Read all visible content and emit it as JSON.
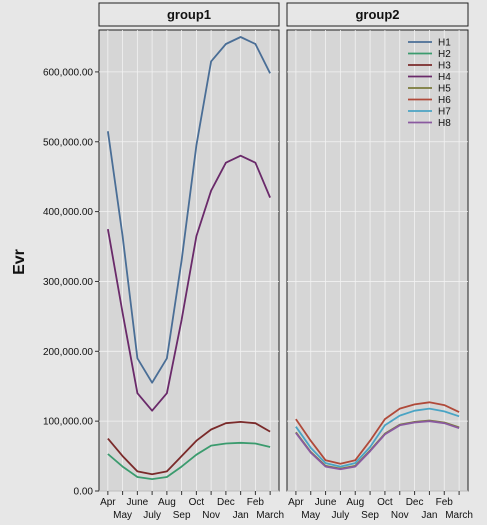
{
  "chart_data": {
    "type": "line",
    "ylabel": "Evr",
    "ylim": [
      0,
      660000
    ],
    "yticks": [
      0,
      100000,
      200000,
      300000,
      400000,
      500000,
      600000
    ],
    "ytick_labels": [
      "0.00",
      "100,000.00",
      "200,000.00",
      "300,000.00",
      "400,000.00",
      "500,000.00",
      "600,000.00"
    ],
    "categories": [
      "Apr",
      "May",
      "June",
      "July",
      "Aug",
      "Sep",
      "Oct",
      "Nov",
      "Dec",
      "Jan",
      "Feb",
      "March"
    ],
    "x_labels_top": [
      "Apr",
      "June",
      "Aug",
      "Oct",
      "Dec",
      "Feb"
    ],
    "x_labels_bottom": [
      "May",
      "July",
      "Sep",
      "Nov",
      "Jan",
      "March"
    ],
    "grid": true,
    "legend": {
      "position": "top-right",
      "entries": [
        {
          "name": "H1",
          "color": "#4a6e96"
        },
        {
          "name": "H2",
          "color": "#3b9b6e"
        },
        {
          "name": "H3",
          "color": "#7a2a2a"
        },
        {
          "name": "H4",
          "color": "#6a2a6a"
        },
        {
          "name": "H5",
          "color": "#7a7a3a"
        },
        {
          "name": "H6",
          "color": "#b04a3a"
        },
        {
          "name": "H7",
          "color": "#4aa4c4"
        },
        {
          "name": "H8",
          "color": "#8a5aa0"
        }
      ]
    },
    "panels": [
      {
        "title": "group1",
        "series": [
          {
            "name": "H1",
            "color": "#4a6e96",
            "values": [
              515000,
              365000,
              190000,
              155000,
              190000,
              330000,
              495000,
              615000,
              640000,
              650000,
              640000,
              598000
            ]
          },
          {
            "name": "H4",
            "color": "#6a2a6a",
            "values": [
              375000,
              255000,
              140000,
              115000,
              140000,
              245000,
              365000,
              430000,
              470000,
              480000,
              470000,
              420000
            ]
          },
          {
            "name": "H3",
            "color": "#7a2a2a",
            "values": [
              75000,
              50000,
              28000,
              24000,
              28000,
              50000,
              72000,
              88000,
              97000,
              99000,
              97000,
              85000
            ]
          },
          {
            "name": "H2",
            "color": "#3b9b6e",
            "values": [
              53000,
              35000,
              20000,
              17000,
              20000,
              35000,
              52000,
              65000,
              68000,
              69000,
              68000,
              63000
            ]
          }
        ]
      },
      {
        "title": "group2",
        "series": [
          {
            "name": "H6",
            "color": "#b04a3a",
            "values": [
              103000,
              72000,
              44000,
              39000,
              44000,
              72000,
              103000,
              118000,
              124000,
              127000,
              123000,
              113000
            ]
          },
          {
            "name": "H7",
            "color": "#4aa4c4",
            "values": [
              92000,
              62000,
              40000,
              35000,
              40000,
              63000,
              94000,
              108000,
              115000,
              118000,
              114000,
              107000
            ]
          },
          {
            "name": "H5",
            "color": "#7a7a3a",
            "values": [
              84000,
              56000,
              36000,
              32000,
              36000,
              58000,
              82000,
              95000,
              99000,
              101000,
              98000,
              91000
            ]
          },
          {
            "name": "H8",
            "color": "#8a5aa0",
            "values": [
              83000,
              55000,
              35000,
              31000,
              35000,
              57000,
              81000,
              94000,
              98000,
              100000,
              97000,
              90000
            ]
          }
        ]
      }
    ]
  }
}
